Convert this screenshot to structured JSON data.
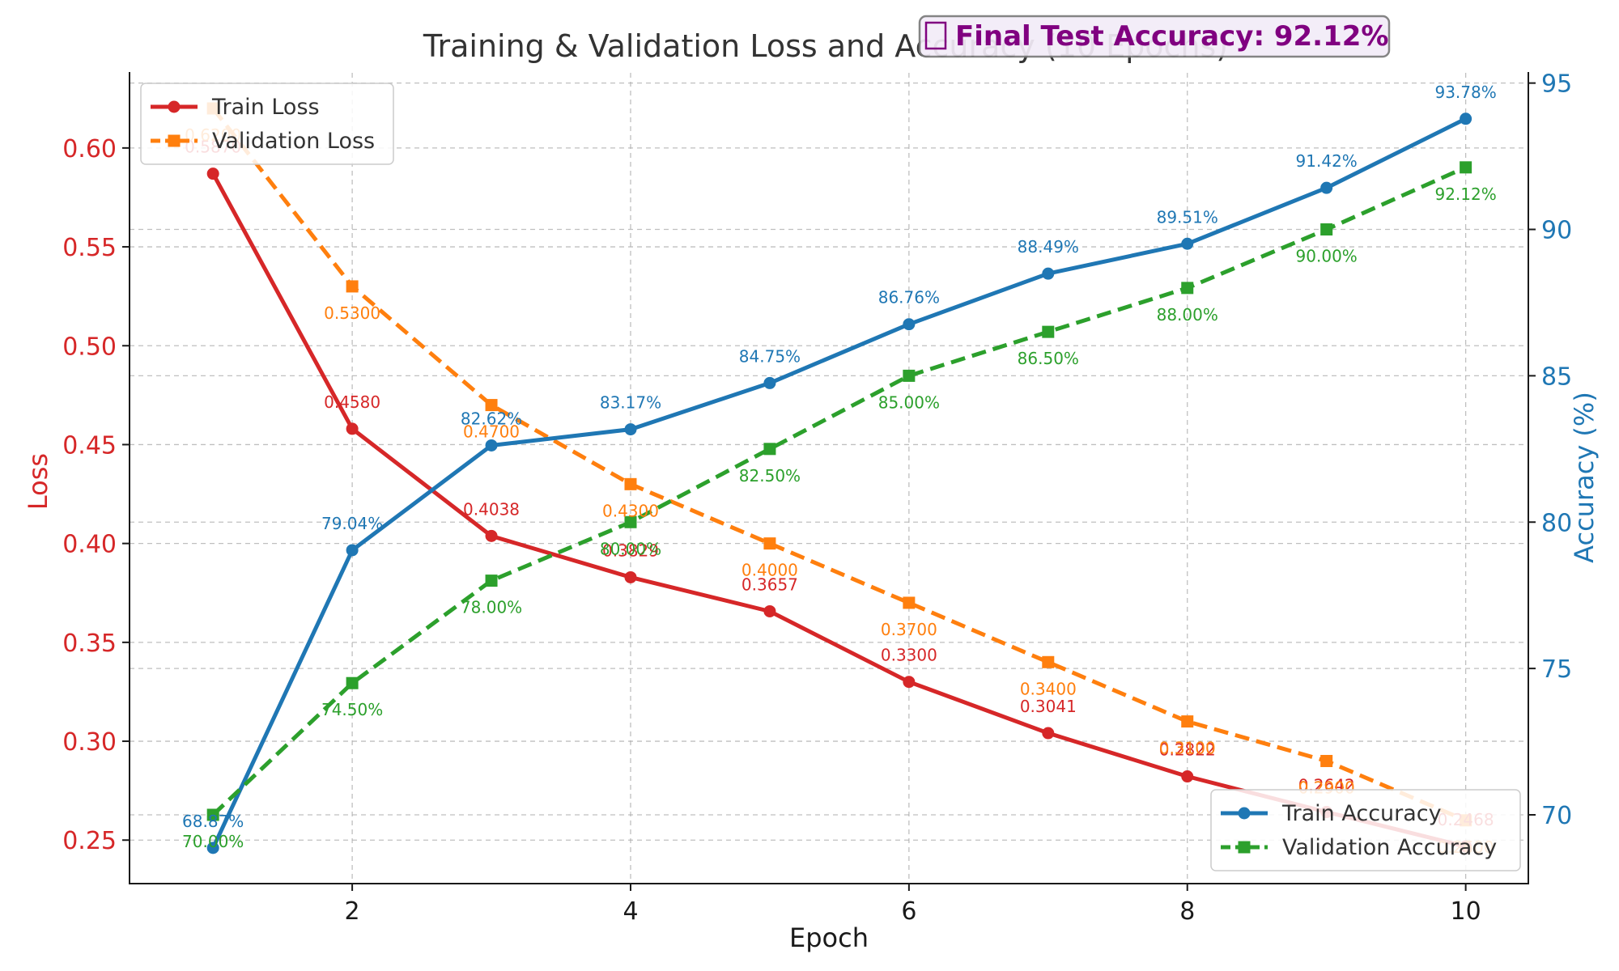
{
  "chart_data": {
    "type": "line",
    "title": "Training & Validation Loss and Accuracy (10 Epochs)",
    "xlabel": "Epoch",
    "ylabel_left": "Loss",
    "ylabel_right": "Accuracy (%)",
    "x": [
      1,
      2,
      3,
      4,
      5,
      6,
      7,
      8,
      9,
      10
    ],
    "xticks": [
      2,
      4,
      6,
      8,
      10
    ],
    "xlim": [
      0.4,
      10.45
    ],
    "ylim_left": [
      0.228,
      0.638
    ],
    "yticks_left": [
      0.25,
      0.3,
      0.35,
      0.4,
      0.45,
      0.5,
      0.55,
      0.6
    ],
    "ylim_right": [
      67.65,
      95.35
    ],
    "yticks_right": [
      70,
      75,
      80,
      85,
      90,
      95
    ],
    "grid": true,
    "legend_left_placement": "top-left",
    "legend_right_placement": "bottom-right",
    "left_series": [
      {
        "name": "Train Loss",
        "color": "#d62728",
        "style": "solid",
        "marker": "circle",
        "values": [
          0.587,
          0.458,
          0.4038,
          0.3829,
          0.3657,
          0.33,
          0.3041,
          0.2822,
          0.2642,
          0.2468
        ],
        "labels": [
          "0.5870",
          "0.4580",
          "0.4038",
          "0.3829",
          "0.3657",
          "0.3300",
          "0.3041",
          "0.2822",
          "0.2642",
          "0.2468"
        ]
      },
      {
        "name": "Validation Loss",
        "color": "#ff7f0e",
        "style": "dashed",
        "marker": "square",
        "values": [
          0.62,
          0.53,
          0.47,
          0.43,
          0.4,
          0.37,
          0.34,
          0.31,
          0.29,
          0.26
        ],
        "labels": [
          "0.6200",
          "0.5300",
          "0.4700",
          "0.4300",
          "0.4000",
          "0.3700",
          "0.3400",
          "0.3100",
          "0.2900",
          "0.2600"
        ]
      }
    ],
    "right_series": [
      {
        "name": "Train Accuracy",
        "color": "#1f77b4",
        "style": "solid",
        "marker": "circle",
        "values": [
          68.87,
          79.04,
          82.62,
          83.17,
          84.75,
          86.76,
          88.49,
          89.51,
          91.42,
          93.78
        ],
        "labels": [
          "68.87%",
          "79.04%",
          "82.62%",
          "83.17%",
          "84.75%",
          "86.76%",
          "88.49%",
          "89.51%",
          "91.42%",
          "93.78%"
        ]
      },
      {
        "name": "Validation Accuracy",
        "color": "#2ca02c",
        "style": "dashed",
        "marker": "square",
        "values": [
          70.0,
          74.5,
          78.0,
          80.0,
          82.5,
          85.0,
          86.5,
          88.0,
          90.0,
          92.12
        ],
        "labels": [
          "70.00%",
          "74.50%",
          "78.00%",
          "80.00%",
          "82.50%",
          "85.00%",
          "86.50%",
          "88.00%",
          "90.00%",
          "92.12%"
        ]
      }
    ],
    "annotation": {
      "icon": "trophy-icon",
      "text": "Final Test Accuracy: 92.12%",
      "color": "#800080",
      "background": "#f3ecf8"
    }
  }
}
